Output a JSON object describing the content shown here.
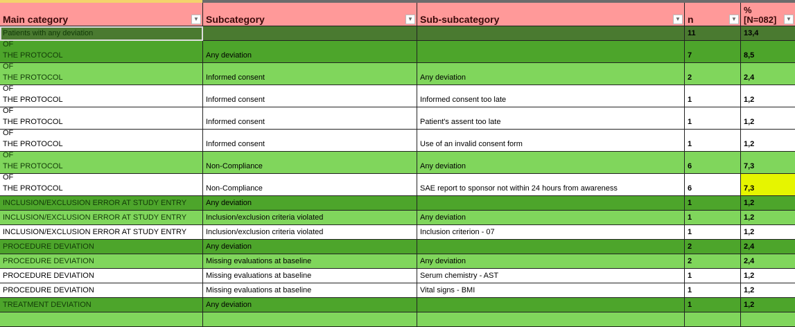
{
  "columns": [
    "Main category",
    "Subcategory",
    "Sub-subcategory",
    "n",
    "%",
    "[N=082]"
  ],
  "colors": {
    "header": "#ff9999",
    "level0": "#4a7a30",
    "level1": "#4da52b",
    "level2": "#80d65c",
    "detail": "#ffffff",
    "highlight": "#e6f500"
  },
  "rows": [
    {
      "main": "Patients with any deviation",
      "sub": "",
      "subsub": "",
      "n": "11",
      "pct": "13,4",
      "style": "dark"
    },
    {
      "main1": "ADHERENCE TO OTHER RELEVANT SPECIFICATIONS OF",
      "main2": "THE PROTOCOL",
      "sub": "Any deviation",
      "subsub": "",
      "n": "7",
      "pct": "8,5",
      "style": "med"
    },
    {
      "main1": "ADHERENCE TO OTHER RELEVANT SPECIFICATIONS OF",
      "main2": "THE PROTOCOL",
      "sub": "Informed consent",
      "subsub": "Any deviation",
      "n": "2",
      "pct": "2,4",
      "style": "light"
    },
    {
      "main1": "ADHERENCE TO OTHER RELEVANT SPECIFICATIONS OF",
      "main2": "THE PROTOCOL",
      "sub": "Informed consent",
      "subsub": "Informed consent too late",
      "n": "1",
      "pct": "1,2",
      "style": "white"
    },
    {
      "main1": "ADHERENCE TO OTHER RELEVANT SPECIFICATIONS OF",
      "main2": "THE PROTOCOL",
      "sub": "Informed consent",
      "subsub": "Patient's assent too late",
      "n": "1",
      "pct": "1,2",
      "style": "white"
    },
    {
      "main1": "ADHERENCE TO OTHER RELEVANT SPECIFICATIONS OF",
      "main2": "THE PROTOCOL",
      "sub": "Informed consent",
      "subsub": "Use of an invalid consent form",
      "n": "1",
      "pct": "1,2",
      "style": "white"
    },
    {
      "main1": "ADHERENCE TO OTHER RELEVANT SPECIFICATIONS OF",
      "main2": "THE PROTOCOL",
      "sub": "Non-Compliance",
      "subsub": "Any deviation",
      "n": "6",
      "pct": "7,3",
      "style": "light"
    },
    {
      "main1": "ADHERENCE TO OTHER RELEVANT SPECIFICATIONS OF",
      "main2": "THE PROTOCOL",
      "sub": "Non-Compliance",
      "subsub": "SAE report to sponsor not within 24 hours from awareness",
      "n": "6",
      "pct": "7,3",
      "style": "white",
      "highlight": true
    },
    {
      "main": "INCLUSION/EXCLUSION ERROR AT STUDY ENTRY",
      "sub": "Any deviation",
      "subsub": "",
      "n": "1",
      "pct": "1,2",
      "style": "med"
    },
    {
      "main": "INCLUSION/EXCLUSION ERROR AT STUDY ENTRY",
      "sub": "Inclusion/exclusion criteria violated",
      "subsub": "Any deviation",
      "n": "1",
      "pct": "1,2",
      "style": "light"
    },
    {
      "main": "INCLUSION/EXCLUSION ERROR AT STUDY ENTRY",
      "sub": "Inclusion/exclusion criteria violated",
      "subsub": "Inclusion criterion - 07",
      "n": "1",
      "pct": "1,2",
      "style": "white"
    },
    {
      "main": "PROCEDURE DEVIATION",
      "sub": "Any deviation",
      "subsub": "",
      "n": "2",
      "pct": "2,4",
      "style": "med"
    },
    {
      "main": "PROCEDURE DEVIATION",
      "sub": "Missing evaluations at baseline",
      "subsub": "Any deviation",
      "n": "2",
      "pct": "2,4",
      "style": "light"
    },
    {
      "main": "PROCEDURE DEVIATION",
      "sub": "Missing evaluations at baseline",
      "subsub": "Serum chemistry - AST",
      "n": "1",
      "pct": "1,2",
      "style": "white"
    },
    {
      "main": "PROCEDURE DEVIATION",
      "sub": "Missing evaluations at baseline",
      "subsub": "Vital signs - BMI",
      "n": "1",
      "pct": "1,2",
      "style": "white"
    },
    {
      "main": "TREATMENT DEVIATION",
      "sub": "Any deviation",
      "subsub": "",
      "n": "1",
      "pct": "1,2",
      "style": "med"
    },
    {
      "main": "",
      "sub": "",
      "subsub": "",
      "n": "",
      "pct": "",
      "style": "light"
    }
  ]
}
